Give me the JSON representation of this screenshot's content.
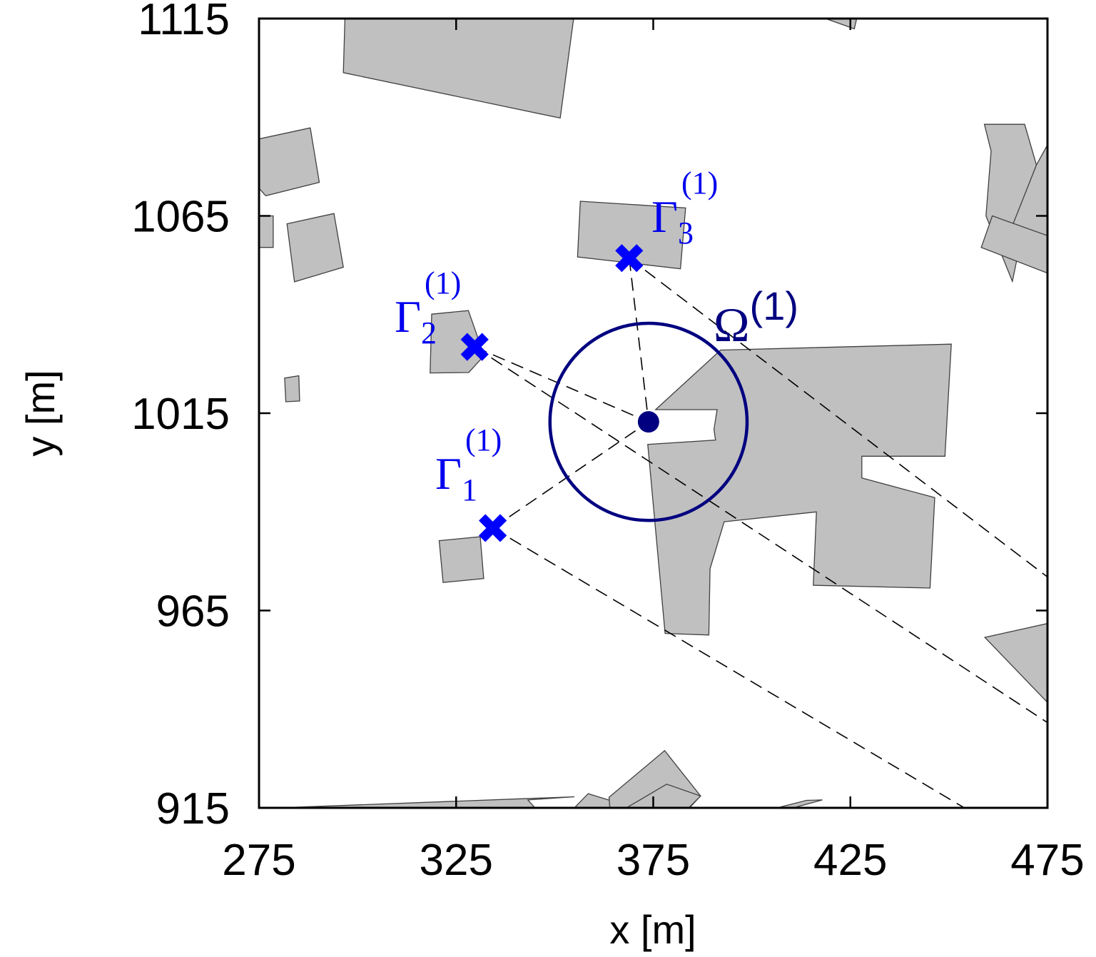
{
  "chart_data": {
    "type": "scatter",
    "xlabel": "x [m]",
    "ylabel": "y [m]",
    "xlim": [
      275,
      475
    ],
    "ylim": [
      915,
      1115
    ],
    "xticks": [
      "275",
      "325",
      "375",
      "425",
      "475"
    ],
    "yticks": [
      "915",
      "965",
      "1015",
      "1065",
      "1115"
    ],
    "grid": false,
    "colors": {
      "building_fill": "#c0c0c0",
      "building_stroke": "#404040",
      "marker": "#0000ff",
      "region": "#000080",
      "dashed": "#000000"
    },
    "buildings": [
      [
        [
          296.8,
          1115
        ],
        [
          354.8,
          1115
        ],
        [
          351.4,
          1089.8
        ],
        [
          296.4,
          1101.3
        ]
      ],
      [
        [
          418.7,
          1115
        ],
        [
          426.6,
          1115
        ],
        [
          426.0,
          1112.4
        ]
      ],
      [
        [
          275.0,
          1084.5
        ],
        [
          288.0,
          1087.3
        ],
        [
          290.3,
          1073.5
        ],
        [
          276.7,
          1070.1
        ],
        [
          275.0,
          1072.0
        ]
      ],
      [
        [
          275.0,
          1065.0
        ],
        [
          278.6,
          1065.0
        ],
        [
          278.6,
          1057.0
        ],
        [
          275.0,
          1057.0
        ]
      ],
      [
        [
          282.1,
          1063.0
        ],
        [
          294.0,
          1065.6
        ],
        [
          296.4,
          1052.0
        ],
        [
          284.0,
          1048.3
        ]
      ],
      [
        [
          356.5,
          1068.7
        ],
        [
          383.2,
          1067.0
        ],
        [
          381.9,
          1051.6
        ],
        [
          355.8,
          1054.6
        ]
      ],
      [
        [
          318.8,
          1040.1
        ],
        [
          328.1,
          1041.0
        ],
        [
          332.1,
          1029.6
        ],
        [
          328.2,
          1025.3
        ],
        [
          318.4,
          1025.2
        ]
      ],
      [
        [
          281.5,
          1023.9
        ],
        [
          285.1,
          1024.5
        ],
        [
          285.3,
          1018.1
        ],
        [
          281.8,
          1017.9
        ]
      ],
      [
        [
          459.0,
          1088.2
        ],
        [
          469.2,
          1088.2
        ],
        [
          472.2,
          1077.9
        ],
        [
          466.1,
          1048.4
        ],
        [
          459.4,
          1065.0
        ],
        [
          460.7,
          1081.4
        ],
        [
          459.0,
          1088.2
        ]
      ],
      [
        [
          472.2,
          1077.9
        ],
        [
          475,
          1083.0
        ],
        [
          475,
          1060.0
        ],
        [
          466.1,
          1062.5
        ]
      ],
      [
        [
          461.0,
          1065.0
        ],
        [
          475.0,
          1060.0
        ],
        [
          475.0,
          1050.5
        ],
        [
          458.2,
          1057.0
        ]
      ],
      [
        [
          392.1,
          1031.0
        ],
        [
          450.6,
          1032.5
        ],
        [
          449.0,
          1004.1
        ],
        [
          427.9,
          1004.1
        ],
        [
          427.9,
          998.6
        ],
        [
          446.4,
          993.6
        ],
        [
          445.2,
          970.7
        ],
        [
          415.6,
          971.4
        ],
        [
          416.4,
          990.0
        ],
        [
          393.0,
          987.5
        ],
        [
          389.4,
          975.6
        ],
        [
          389.1,
          958.8
        ],
        [
          378.0,
          959.2
        ],
        [
          373.6,
          1007.1
        ],
        [
          390.8,
          1008.2
        ],
        [
          390.4,
          1010.9
        ],
        [
          391.2,
          1015.9
        ],
        [
          375.6,
          1015.9
        ],
        [
          392.1,
          1031.0
        ]
      ],
      [
        [
          320.7,
          982.7
        ],
        [
          331.1,
          983.7
        ],
        [
          332.0,
          973.1
        ],
        [
          321.7,
          972.1
        ]
      ],
      [
        [
          459.1,
          958.2
        ],
        [
          475.0,
          961.7
        ],
        [
          475.0,
          941.7
        ]
      ],
      [
        [
          280.0,
          915.0
        ],
        [
          345.0,
          915.0
        ],
        [
          343.2,
          917.0
        ],
        [
          355.0,
          917.8
        ]
      ],
      [
        [
          358.5,
          918.6
        ],
        [
          364.0,
          916.9
        ],
        [
          370.2,
          915.0
        ],
        [
          355.0,
          915.0
        ]
      ],
      [
        [
          363.8,
          917.7
        ],
        [
          377.9,
          929.5
        ],
        [
          387.0,
          918.0
        ],
        [
          384.2,
          915.0
        ],
        [
          364.0,
          915.0
        ]
      ],
      [
        [
          368.2,
          915.0
        ],
        [
          378.4,
          921.0
        ],
        [
          387.0,
          918.0
        ],
        [
          384.0,
          915.0
        ]
      ],
      [
        [
          406.4,
          915.0
        ],
        [
          413.9,
          916.9
        ],
        [
          417.9,
          917.0
        ],
        [
          410.5,
          915.0
        ]
      ]
    ],
    "region": {
      "name": "Ω",
      "superscript": "(1)",
      "center": [
        373.8,
        1012.8
      ],
      "radius": 25.0
    },
    "points": [
      {
        "name": "Γ",
        "sub": "1",
        "sup": "(1)",
        "x": 334.3,
        "y": 985.9
      },
      {
        "name": "Γ",
        "sub": "2",
        "sup": "(1)",
        "x": 329.7,
        "y": 1031.8
      },
      {
        "name": "Γ",
        "sub": "3",
        "sup": "(1)",
        "x": 368.9,
        "y": 1054.3
      }
    ],
    "rays": [
      {
        "from": [
          334.3,
          985.9
        ],
        "to": [
          373.8,
          1012.8
        ]
      },
      {
        "from": [
          329.7,
          1031.8
        ],
        "to": [
          373.8,
          1012.8
        ]
      },
      {
        "from": [
          368.9,
          1054.3
        ],
        "to": [
          373.8,
          1012.8
        ]
      },
      {
        "from": [
          334.3,
          985.9
        ],
        "to": [
          453.9,
          915.0
        ]
      },
      {
        "from": [
          329.7,
          1031.8
        ],
        "to": [
          475.0,
          936.6
        ]
      },
      {
        "from": [
          368.9,
          1054.3
        ],
        "to": [
          475.0,
          973.5
        ]
      }
    ]
  }
}
